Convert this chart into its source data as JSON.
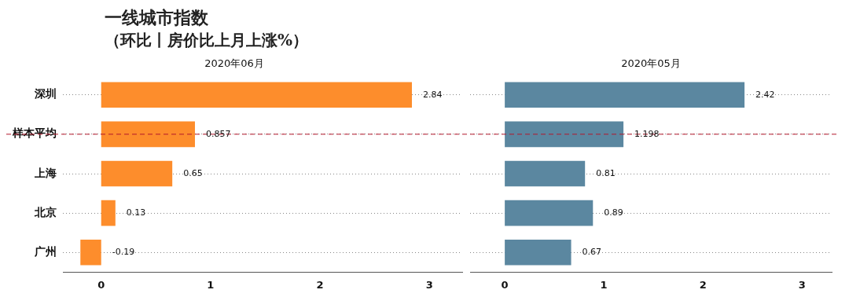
{
  "chart_data": [
    {
      "type": "other",
      "title": "一线城市指数",
      "subtitle": "（环比丨房价比上月上涨%）"
    },
    {
      "type": "bar",
      "orientation": "horizontal",
      "title": "2020年06月",
      "categories": [
        "深圳",
        "样本平均",
        "上海",
        "北京",
        "广州"
      ],
      "values": [
        2.84,
        0.857,
        0.65,
        0.13,
        -0.19
      ],
      "color": "#fd8d2c",
      "xlim": [
        -0.35,
        3.3
      ],
      "xticks": [
        0,
        1,
        2,
        3
      ],
      "grid": "y",
      "data_labels": true,
      "ref_lines": [
        {
          "axis": "y",
          "value": "样本平均",
          "color": "#b2182b",
          "line_style": "dashed"
        }
      ]
    },
    {
      "type": "bar",
      "orientation": "horizontal",
      "title": "2020年05月",
      "categories": [
        "深圳",
        "样本平均",
        "上海",
        "北京",
        "广州"
      ],
      "values": [
        2.42,
        1.198,
        0.81,
        0.89,
        0.67
      ],
      "color": "#5b87a0",
      "xlim": [
        -0.35,
        3.3
      ],
      "xticks": [
        0,
        1,
        2,
        3
      ],
      "grid": "y",
      "data_labels": true,
      "tick_labels": "x",
      "ref_lines": [
        {
          "axis": "y",
          "value": "样本平均",
          "color": "#b2182b",
          "line_style": "dashed"
        }
      ]
    }
  ]
}
